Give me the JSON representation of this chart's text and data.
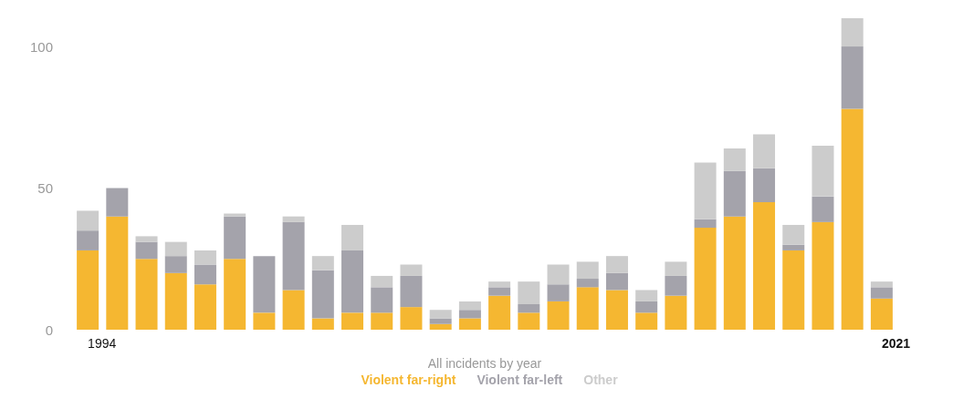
{
  "chart_data": {
    "type": "bar",
    "stacked": true,
    "xlabel": "All incidents by year",
    "categories": [
      "1994",
      null,
      null,
      null,
      null,
      null,
      null,
      null,
      null,
      null,
      null,
      null,
      null,
      null,
      null,
      null,
      null,
      null,
      null,
      null,
      null,
      null,
      null,
      null,
      null,
      null,
      null,
      "2021"
    ],
    "series": [
      {
        "name": "Violent far-right",
        "color": "#f5b731",
        "values": [
          28,
          40,
          25,
          20,
          16,
          25,
          6,
          14,
          4,
          6,
          6,
          8,
          2,
          4,
          12,
          6,
          10,
          15,
          14,
          6,
          12,
          36,
          40,
          45,
          28,
          38,
          78,
          11
        ]
      },
      {
        "name": "Violent far-left",
        "color": "#a4a3ab",
        "values": [
          7,
          10,
          6,
          6,
          7,
          15,
          20,
          24,
          17,
          22,
          9,
          11,
          2,
          3,
          3,
          3,
          6,
          3,
          6,
          4,
          7,
          3,
          16,
          12,
          2,
          9,
          22,
          4
        ]
      },
      {
        "name": "Other",
        "color": "#cccccc",
        "values": [
          7,
          0,
          2,
          5,
          5,
          1,
          0,
          2,
          5,
          9,
          4,
          4,
          3,
          3,
          2,
          8,
          7,
          6,
          6,
          4,
          5,
          20,
          8,
          12,
          7,
          18,
          10,
          2
        ]
      }
    ],
    "ylim": [
      0,
      110
    ],
    "yticks": [
      0,
      50,
      100
    ],
    "grid": false,
    "legend": "bottom"
  }
}
